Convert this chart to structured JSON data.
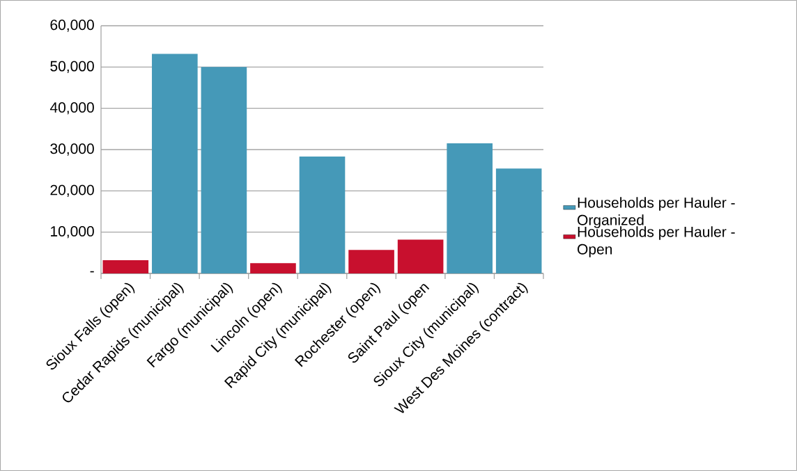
{
  "chart_data": {
    "type": "bar",
    "categories": [
      "Sioux Falls (open)",
      "Cedar Rapids (municipal)",
      "Fargo (municipal)",
      "Lincoln (open)",
      "Rapid City (municipal)",
      "Rochester (open)",
      "Saint Paul (open",
      "Sioux City (municipal)",
      "West Des Moines (contract)"
    ],
    "series": [
      {
        "name": "Households per Hauler - Organized",
        "color": "#4599b8",
        "values": [
          null,
          53200,
          50000,
          null,
          28300,
          null,
          null,
          31500,
          25400
        ]
      },
      {
        "name": "Households per Hauler - Open",
        "color": "#c8102e",
        "values": [
          3200,
          null,
          null,
          2500,
          null,
          5700,
          8200,
          null,
          null
        ]
      }
    ],
    "ylim": [
      0,
      60000
    ],
    "yticks": [
      {
        "value": 0,
        "label": "-"
      },
      {
        "value": 10000,
        "label": "10,000"
      },
      {
        "value": 20000,
        "label": "20,000"
      },
      {
        "value": 30000,
        "label": "30,000"
      },
      {
        "value": 40000,
        "label": "40,000"
      },
      {
        "value": 50000,
        "label": "50,000"
      },
      {
        "value": 60000,
        "label": "60,000"
      }
    ],
    "grid": "y",
    "legend": "right"
  }
}
